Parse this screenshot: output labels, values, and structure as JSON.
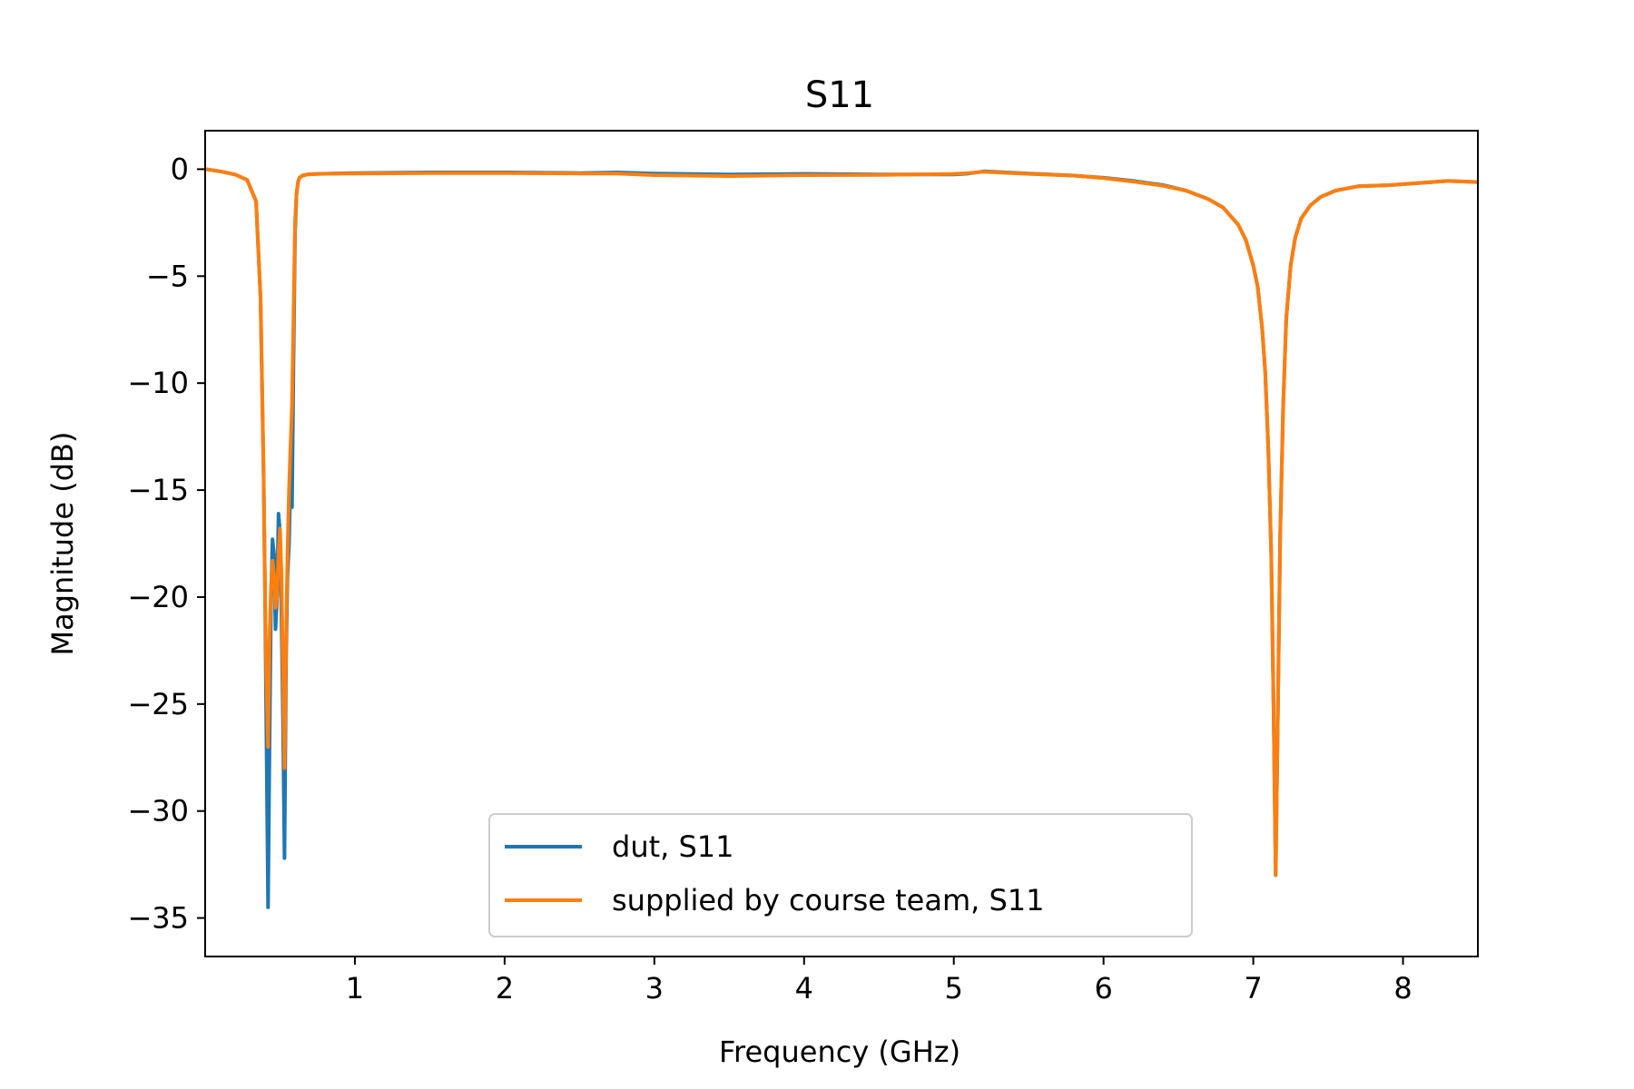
{
  "chart_data": {
    "type": "line",
    "title": "S11",
    "xlabel": "Frequency (GHz)",
    "ylabel": "Magnitude (dB)",
    "xlim": [
      0.0,
      8.5
    ],
    "ylim": [
      -36.8,
      1.8
    ],
    "xticks": [
      1,
      2,
      3,
      4,
      5,
      6,
      7,
      8
    ],
    "xtick_labels": [
      "1",
      "2",
      "3",
      "4",
      "5",
      "6",
      "7",
      "8"
    ],
    "yticks": [
      0,
      -5,
      -10,
      -15,
      -20,
      -25,
      -30,
      -35
    ],
    "ytick_labels": [
      "0",
      "−5",
      "−10",
      "−15",
      "−20",
      "−25",
      "−30",
      "−35"
    ],
    "grid": false,
    "legend_position": "lower-center",
    "series": [
      {
        "name": "dut, S11",
        "color": "#1f77b4",
        "x": [
          0.0,
          0.1,
          0.2,
          0.28,
          0.34,
          0.37,
          0.39,
          0.4,
          0.41,
          0.42,
          0.43,
          0.44,
          0.45,
          0.46,
          0.47,
          0.48,
          0.49,
          0.5,
          0.51,
          0.52,
          0.53,
          0.54,
          0.55,
          0.56,
          0.57,
          0.58,
          0.59,
          0.6,
          0.61,
          0.62,
          0.63,
          0.65,
          0.68,
          0.75,
          1.0,
          1.5,
          2.0,
          2.5,
          2.75,
          3.0,
          3.5,
          4.0,
          4.5,
          5.0,
          5.1,
          5.2,
          5.5,
          5.8,
          6.0,
          6.2,
          6.4,
          6.55,
          6.7,
          6.8,
          6.9,
          6.95,
          7.0,
          7.03,
          7.06,
          7.08,
          7.1,
          7.12,
          7.135,
          7.15,
          7.165,
          7.18,
          7.2,
          7.22,
          7.25,
          7.28,
          7.32,
          7.38,
          7.45,
          7.55,
          7.7,
          7.9,
          8.1,
          8.3,
          8.5
        ],
        "y": [
          0.0,
          -0.1,
          -0.25,
          -0.5,
          -1.5,
          -6.0,
          -14.0,
          -20.0,
          -27.0,
          -34.5,
          -27.0,
          -20.0,
          -17.3,
          -18.0,
          -21.5,
          -20.0,
          -16.1,
          -17.0,
          -21.0,
          -26.0,
          -32.2,
          -23.0,
          -19.0,
          -17.5,
          -14.5,
          -15.8,
          -9.0,
          -3.0,
          -1.2,
          -0.6,
          -0.4,
          -0.3,
          -0.25,
          -0.22,
          -0.18,
          -0.15,
          -0.15,
          -0.18,
          -0.15,
          -0.2,
          -0.25,
          -0.22,
          -0.25,
          -0.25,
          -0.2,
          -0.1,
          -0.2,
          -0.3,
          -0.4,
          -0.55,
          -0.75,
          -1.0,
          -1.4,
          -1.8,
          -2.6,
          -3.3,
          -4.5,
          -5.5,
          -7.5,
          -9.5,
          -13.0,
          -18.0,
          -25.0,
          -33.0,
          -25.0,
          -17.0,
          -11.0,
          -7.0,
          -4.5,
          -3.2,
          -2.3,
          -1.7,
          -1.3,
          -1.0,
          -0.8,
          -0.75,
          -0.65,
          -0.55,
          -0.6
        ]
      },
      {
        "name": "supplied by course team, S11",
        "color": "#ff7f0e",
        "x": [
          0.0,
          0.1,
          0.2,
          0.28,
          0.34,
          0.37,
          0.39,
          0.4,
          0.41,
          0.42,
          0.43,
          0.44,
          0.45,
          0.46,
          0.47,
          0.48,
          0.49,
          0.5,
          0.51,
          0.52,
          0.53,
          0.54,
          0.55,
          0.56,
          0.57,
          0.58,
          0.59,
          0.6,
          0.61,
          0.62,
          0.63,
          0.65,
          0.68,
          0.75,
          1.0,
          1.5,
          2.0,
          2.5,
          2.75,
          3.0,
          3.5,
          4.0,
          4.5,
          5.0,
          5.1,
          5.2,
          5.5,
          5.8,
          6.0,
          6.2,
          6.4,
          6.55,
          6.7,
          6.8,
          6.9,
          6.95,
          7.0,
          7.03,
          7.06,
          7.08,
          7.1,
          7.12,
          7.135,
          7.15,
          7.165,
          7.18,
          7.2,
          7.22,
          7.25,
          7.28,
          7.32,
          7.38,
          7.45,
          7.55,
          7.7,
          7.9,
          8.1,
          8.3,
          8.5
        ],
        "y": [
          0.0,
          -0.1,
          -0.25,
          -0.5,
          -1.5,
          -6.0,
          -14.0,
          -20.0,
          -24.0,
          -27.0,
          -22.0,
          -19.5,
          -18.3,
          -19.0,
          -20.5,
          -20.0,
          -18.0,
          -16.8,
          -19.0,
          -24.0,
          -28.0,
          -22.0,
          -18.0,
          -15.0,
          -13.0,
          -11.0,
          -7.0,
          -2.5,
          -1.2,
          -0.6,
          -0.4,
          -0.3,
          -0.25,
          -0.22,
          -0.2,
          -0.18,
          -0.18,
          -0.2,
          -0.2,
          -0.28,
          -0.32,
          -0.28,
          -0.27,
          -0.22,
          -0.18,
          -0.12,
          -0.22,
          -0.3,
          -0.42,
          -0.58,
          -0.78,
          -1.0,
          -1.4,
          -1.8,
          -2.6,
          -3.3,
          -4.5,
          -5.5,
          -7.5,
          -9.5,
          -13.0,
          -18.0,
          -25.0,
          -33.0,
          -25.0,
          -17.0,
          -11.0,
          -7.0,
          -4.5,
          -3.2,
          -2.3,
          -1.7,
          -1.3,
          -1.0,
          -0.8,
          -0.75,
          -0.65,
          -0.55,
          -0.6
        ]
      }
    ]
  }
}
